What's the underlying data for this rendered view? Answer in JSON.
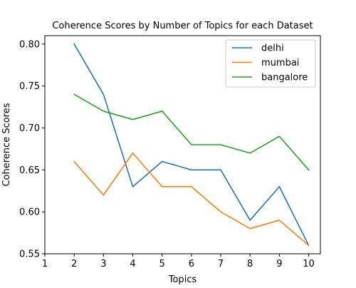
{
  "chart_data": {
    "type": "line",
    "title": "Coherence Scores by Number of Topics for each Dataset",
    "xlabel": "Topics",
    "ylabel": "Coherence Scores",
    "xlim": [
      1,
      10.4
    ],
    "ylim": [
      0.55,
      0.81
    ],
    "xticks": [
      1,
      2,
      3,
      4,
      5,
      6,
      7,
      8,
      9,
      10
    ],
    "yticks": [
      0.55,
      0.6,
      0.65,
      0.7,
      0.75,
      0.8
    ],
    "ytick_labels": [
      "0.55",
      "0.60",
      "0.65",
      "0.70",
      "0.75",
      "0.80"
    ],
    "grid": false,
    "legend_position": "top-right",
    "x": [
      2,
      3,
      4,
      5,
      6,
      7,
      8,
      9,
      10
    ],
    "series": [
      {
        "name": "delhi",
        "color": "#1f77b4",
        "values": [
          0.8,
          0.74,
          0.63,
          0.66,
          0.65,
          0.65,
          0.59,
          0.63,
          0.56
        ]
      },
      {
        "name": "mumbai",
        "color": "#ff7f0e",
        "values": [
          0.66,
          0.62,
          0.67,
          0.63,
          0.63,
          0.6,
          0.58,
          0.59,
          0.56
        ]
      },
      {
        "name": "bangalore",
        "color": "#2ca02c",
        "values": [
          0.74,
          0.72,
          0.71,
          0.72,
          0.68,
          0.68,
          0.67,
          0.69,
          0.65
        ]
      }
    ]
  }
}
